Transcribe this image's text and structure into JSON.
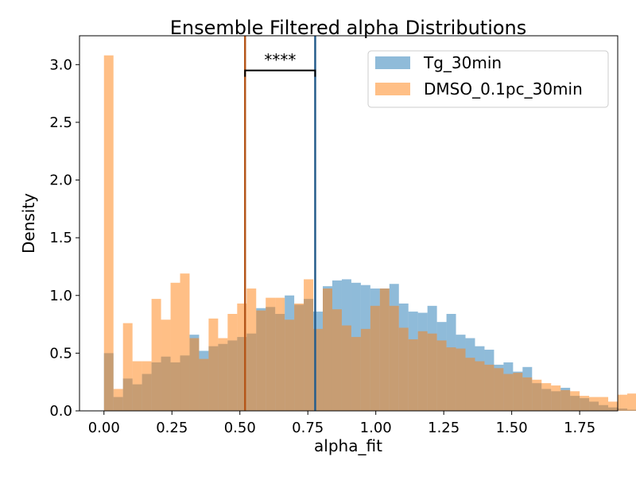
{
  "chart_data": {
    "type": "histogram",
    "title": "Ensemble Filtered alpha Distributions",
    "xlabel": "alpha_fit",
    "ylabel": "Density",
    "xlim": [
      -0.09,
      1.89
    ],
    "ylim": [
      0,
      3.25
    ],
    "xticks": [
      "0.00",
      "0.25",
      "0.50",
      "0.75",
      "1.00",
      "1.25",
      "1.50",
      "1.75"
    ],
    "yticks": [
      "0.0",
      "0.5",
      "1.0",
      "1.5",
      "2.0",
      "2.5",
      "3.0"
    ],
    "bin_width": 0.035,
    "grid": false,
    "legend_position": "upper right",
    "series": [
      {
        "name": "Tg_30min",
        "color": "#1f77b4",
        "alpha": 0.5,
        "start": 0.0,
        "values": [
          0.5,
          0.12,
          0.28,
          0.23,
          0.32,
          0.42,
          0.47,
          0.42,
          0.48,
          0.66,
          0.52,
          0.56,
          0.58,
          0.61,
          0.64,
          0.67,
          0.89,
          0.9,
          0.84,
          1.0,
          0.92,
          0.97,
          0.86,
          1.08,
          1.13,
          1.14,
          1.11,
          1.09,
          1.06,
          1.06,
          1.1,
          0.93,
          0.86,
          0.85,
          0.91,
          0.77,
          0.84,
          0.66,
          0.63,
          0.56,
          0.53,
          0.4,
          0.42,
          0.34,
          0.38,
          0.24,
          0.19,
          0.17,
          0.2,
          0.13,
          0.11,
          0.08,
          0.05,
          0.03,
          0.02,
          0.01,
          0.01,
          0.01,
          0.01,
          0.01,
          0.0,
          0.0,
          0.0
        ]
      },
      {
        "name": "DMSO_0.1pc_30min",
        "color": "#ff7f0e",
        "alpha": 0.5,
        "start": 0.0,
        "values": [
          3.08,
          0.19,
          0.76,
          0.43,
          0.43,
          0.97,
          0.79,
          1.11,
          1.19,
          0.63,
          0.45,
          0.8,
          0.63,
          0.84,
          0.93,
          1.06,
          0.87,
          0.98,
          0.98,
          0.79,
          0.93,
          1.14,
          0.71,
          1.06,
          0.88,
          0.74,
          0.64,
          0.71,
          0.91,
          1.06,
          0.91,
          0.72,
          0.62,
          0.69,
          0.67,
          0.61,
          0.55,
          0.54,
          0.46,
          0.43,
          0.4,
          0.37,
          0.32,
          0.33,
          0.29,
          0.27,
          0.24,
          0.22,
          0.18,
          0.17,
          0.13,
          0.12,
          0.12,
          0.08,
          0.14,
          0.15,
          0.08,
          0.06,
          0.04,
          0.04,
          0.05,
          0.18,
          0.08
        ]
      }
    ],
    "vlines": [
      {
        "x": 0.519,
        "color": "#b5571b"
      },
      {
        "x": 0.777,
        "color": "#265d8c"
      }
    ],
    "annotation": {
      "text": "****",
      "x1": 0.519,
      "x2": 0.777,
      "y": 2.95
    }
  }
}
